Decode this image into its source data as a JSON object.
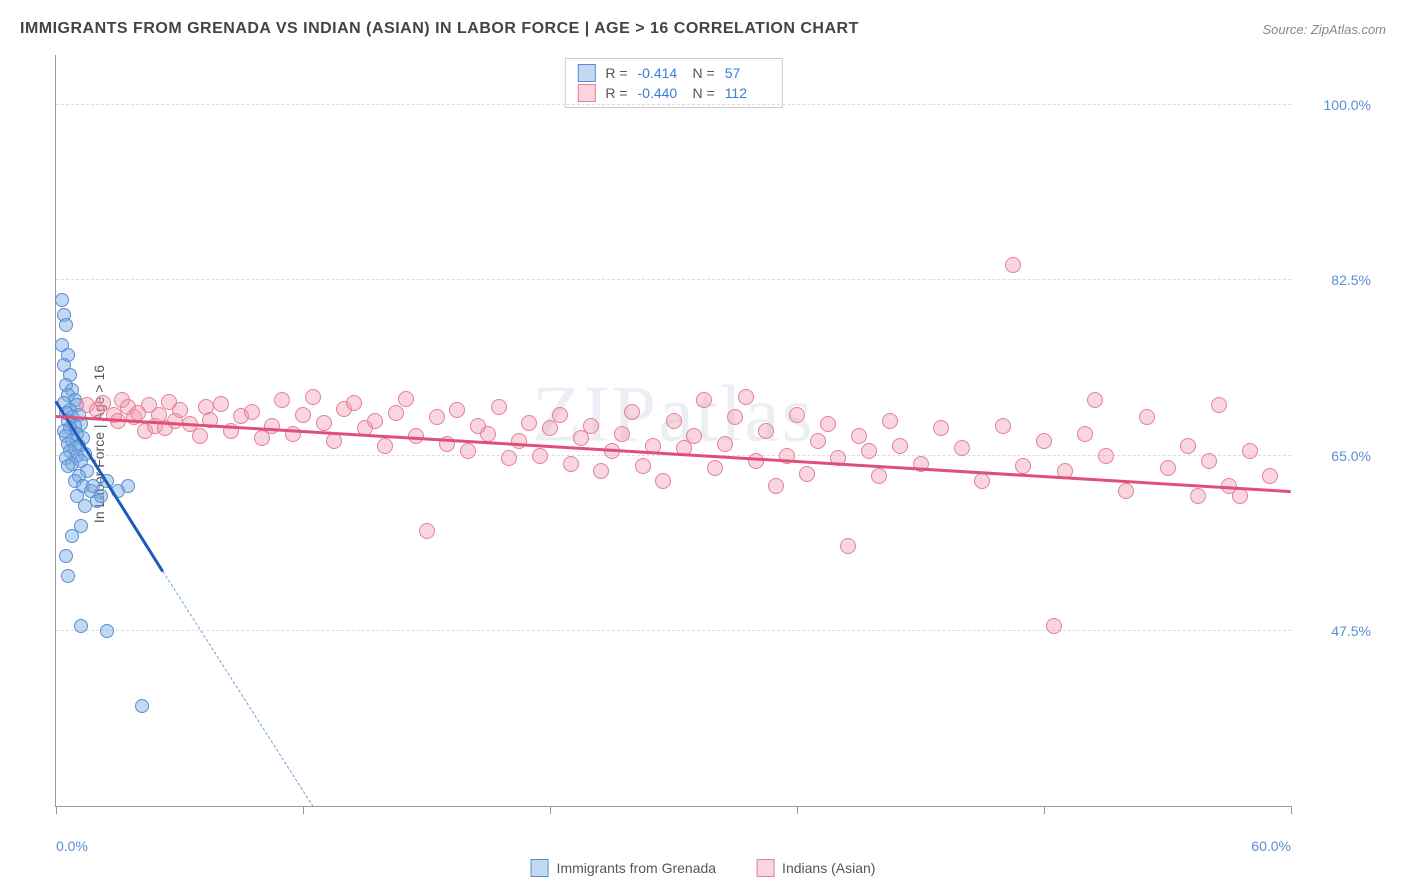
{
  "title": "IMMIGRANTS FROM GRENADA VS INDIAN (ASIAN) IN LABOR FORCE | AGE > 16 CORRELATION CHART",
  "source": "Source: ZipAtlas.com",
  "ylabel": "In Labor Force | Age > 16",
  "watermark": "ZIPatlas",
  "chart": {
    "type": "scatter",
    "background_color": "#ffffff",
    "grid_color": "#dddddd",
    "axis_color": "#999999",
    "xlim": [
      0,
      60
    ],
    "ylim": [
      30,
      105
    ],
    "yticks": [
      {
        "v": 47.5,
        "label": "47.5%"
      },
      {
        "v": 65.0,
        "label": "65.0%"
      },
      {
        "v": 82.5,
        "label": "82.5%"
      },
      {
        "v": 100.0,
        "label": "100.0%"
      }
    ],
    "xticks_visual": [
      0,
      12,
      24,
      36,
      48,
      60
    ],
    "xtick_labels": [
      {
        "v": 0,
        "label": "0.0%"
      },
      {
        "v": 60,
        "label": "60.0%"
      }
    ],
    "tick_label_color": "#5b8dd6",
    "tick_label_fontsize": 14
  },
  "series": [
    {
      "id": "grenada",
      "name": "Immigrants from Grenada",
      "fill_color": "rgba(120, 170, 225, 0.45)",
      "stroke_color": "#5b8dd6",
      "line_color": "#1e5bb8",
      "dashed_color": "#6fa0d8",
      "marker_radius": 7,
      "R": "-0.414",
      "N": "57",
      "trend": {
        "x1": 0,
        "y1": 70.5,
        "x2": 5.2,
        "y2": 53.5
      },
      "dashed": {
        "x1": 5.2,
        "y1": 53.5,
        "x2": 12.5,
        "y2": 30
      },
      "points": [
        [
          0.3,
          80.5
        ],
        [
          0.4,
          79
        ],
        [
          0.5,
          78
        ],
        [
          0.3,
          76
        ],
        [
          0.6,
          75
        ],
        [
          0.4,
          74
        ],
        [
          0.7,
          73
        ],
        [
          0.5,
          72
        ],
        [
          0.8,
          71.5
        ],
        [
          0.6,
          71
        ],
        [
          0.9,
          70.5
        ],
        [
          0.4,
          70.2
        ],
        [
          1.0,
          70
        ],
        [
          0.7,
          69.5
        ],
        [
          0.5,
          69.2
        ],
        [
          1.1,
          69
        ],
        [
          0.8,
          68.8
        ],
        [
          0.6,
          68.5
        ],
        [
          1.2,
          68.2
        ],
        [
          0.9,
          68
        ],
        [
          0.7,
          67.8
        ],
        [
          0.4,
          67.5
        ],
        [
          1.0,
          67.2
        ],
        [
          0.5,
          67
        ],
        [
          1.3,
          66.8
        ],
        [
          0.8,
          66.5
        ],
        [
          0.6,
          66.2
        ],
        [
          1.1,
          66
        ],
        [
          0.9,
          65.8
        ],
        [
          0.7,
          65.5
        ],
        [
          1.4,
          65.2
        ],
        [
          1.0,
          65
        ],
        [
          0.5,
          64.8
        ],
        [
          1.2,
          64.5
        ],
        [
          0.8,
          64.2
        ],
        [
          0.6,
          64
        ],
        [
          1.5,
          63.5
        ],
        [
          1.1,
          63
        ],
        [
          0.9,
          62.5
        ],
        [
          1.3,
          62
        ],
        [
          1.7,
          61.5
        ],
        [
          1.0,
          61
        ],
        [
          2.0,
          60.5
        ],
        [
          1.4,
          60
        ],
        [
          1.8,
          62
        ],
        [
          2.2,
          61
        ],
        [
          2.5,
          62.5
        ],
        [
          3.0,
          61.5
        ],
        [
          3.5,
          62
        ],
        [
          1.2,
          58
        ],
        [
          0.8,
          57
        ],
        [
          0.5,
          55
        ],
        [
          0.6,
          53
        ],
        [
          1.2,
          48
        ],
        [
          2.5,
          47.5
        ],
        [
          4.2,
          40
        ]
      ]
    },
    {
      "id": "indian",
      "name": "Indians (Asian)",
      "fill_color": "rgba(240, 150, 175, 0.40)",
      "stroke_color": "#e57f9a",
      "line_color": "#e04f7a",
      "marker_radius": 8,
      "R": "-0.440",
      "N": "112",
      "trend": {
        "x1": 0,
        "y1": 69,
        "x2": 60,
        "y2": 61.5
      },
      "points": [
        [
          1.5,
          70
        ],
        [
          2,
          69.5
        ],
        [
          2.3,
          70.2
        ],
        [
          2.8,
          69
        ],
        [
          3,
          68.5
        ],
        [
          3.2,
          70.5
        ],
        [
          3.5,
          69.8
        ],
        [
          3.8,
          68.8
        ],
        [
          4,
          69.2
        ],
        [
          4.3,
          67.5
        ],
        [
          4.5,
          70
        ],
        [
          4.8,
          68
        ],
        [
          5,
          69
        ],
        [
          5.3,
          67.8
        ],
        [
          5.5,
          70.3
        ],
        [
          5.8,
          68.5
        ],
        [
          6,
          69.5
        ],
        [
          6.5,
          68.2
        ],
        [
          7,
          67
        ],
        [
          7.3,
          69.8
        ],
        [
          7.5,
          68.6
        ],
        [
          8,
          70.1
        ],
        [
          8.5,
          67.5
        ],
        [
          9,
          68.9
        ],
        [
          9.5,
          69.3
        ],
        [
          10,
          66.8
        ],
        [
          10.5,
          68
        ],
        [
          11,
          70.5
        ],
        [
          11.5,
          67.2
        ],
        [
          12,
          69
        ],
        [
          12.5,
          70.8
        ],
        [
          13,
          68.3
        ],
        [
          13.5,
          66.5
        ],
        [
          14,
          69.6
        ],
        [
          14.5,
          70.2
        ],
        [
          15,
          67.8
        ],
        [
          15.5,
          68.5
        ],
        [
          16,
          66
        ],
        [
          16.5,
          69.2
        ],
        [
          17,
          70.6
        ],
        [
          17.5,
          67
        ],
        [
          18,
          57.5
        ],
        [
          18.5,
          68.8
        ],
        [
          19,
          66.2
        ],
        [
          19.5,
          69.5
        ],
        [
          20,
          65.5
        ],
        [
          20.5,
          68
        ],
        [
          21,
          67.2
        ],
        [
          21.5,
          69.8
        ],
        [
          22,
          64.8
        ],
        [
          22.5,
          66.5
        ],
        [
          23,
          68.3
        ],
        [
          23.5,
          65
        ],
        [
          24,
          67.8
        ],
        [
          24.5,
          69
        ],
        [
          25,
          64.2
        ],
        [
          25.5,
          66.8
        ],
        [
          26,
          68
        ],
        [
          26.5,
          63.5
        ],
        [
          27,
          65.5
        ],
        [
          27.5,
          67.2
        ],
        [
          28,
          69.3
        ],
        [
          28.5,
          64
        ],
        [
          29,
          66
        ],
        [
          29.5,
          62.5
        ],
        [
          30,
          68.5
        ],
        [
          30.5,
          65.8
        ],
        [
          31,
          67
        ],
        [
          31.5,
          70.5
        ],
        [
          32,
          63.8
        ],
        [
          32.5,
          66.2
        ],
        [
          33,
          68.8
        ],
        [
          33.5,
          70.8
        ],
        [
          34,
          64.5
        ],
        [
          34.5,
          67.5
        ],
        [
          35,
          62
        ],
        [
          35.5,
          65
        ],
        [
          36,
          69
        ],
        [
          36.5,
          63.2
        ],
        [
          37,
          66.5
        ],
        [
          37.5,
          68.2
        ],
        [
          38,
          64.8
        ],
        [
          38.5,
          56
        ],
        [
          39,
          67
        ],
        [
          39.5,
          65.5
        ],
        [
          40,
          63
        ],
        [
          40.5,
          68.5
        ],
        [
          41,
          66
        ],
        [
          42,
          64.2
        ],
        [
          43,
          67.8
        ],
        [
          44,
          65.8
        ],
        [
          45,
          62.5
        ],
        [
          46,
          68
        ],
        [
          46.5,
          84
        ],
        [
          47,
          64
        ],
        [
          48,
          66.5
        ],
        [
          48.5,
          48
        ],
        [
          49,
          63.5
        ],
        [
          50,
          67.2
        ],
        [
          50.5,
          70.5
        ],
        [
          51,
          65
        ],
        [
          52,
          61.5
        ],
        [
          53,
          68.8
        ],
        [
          54,
          63.8
        ],
        [
          55,
          66
        ],
        [
          55.5,
          61
        ],
        [
          56,
          64.5
        ],
        [
          56.5,
          70
        ],
        [
          57,
          62
        ],
        [
          57.5,
          61
        ],
        [
          58,
          65.5
        ],
        [
          59,
          63
        ]
      ]
    }
  ],
  "stats_box": {
    "border_color": "#cccccc",
    "label_R": "R =",
    "label_N": "N ="
  },
  "legend": {
    "items": [
      {
        "series": "grenada"
      },
      {
        "series": "indian"
      }
    ]
  }
}
